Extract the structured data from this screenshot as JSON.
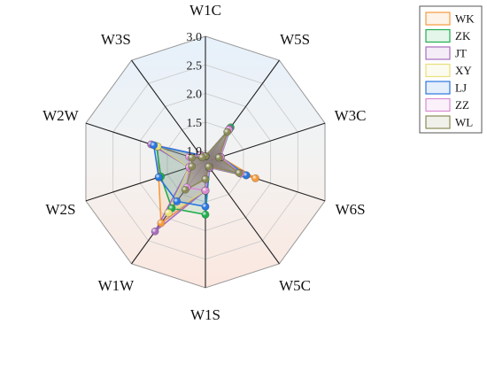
{
  "chart_data": {
    "type": "radar",
    "categories": [
      "W1C",
      "W5S",
      "W3C",
      "W6S",
      "W5C",
      "W1S",
      "W1W",
      "W2S",
      "W2W",
      "W3S"
    ],
    "r_ticks": [
      "1.0",
      "1.5",
      "2.0",
      "2.5",
      "3.0"
    ],
    "rlim": [
      0.8,
      3.0
    ],
    "grid": true,
    "legend_position": "top-right",
    "series": [
      {
        "name": "WK",
        "color": "#f59a3e",
        "values": [
          0.9,
          1.5,
          1.08,
          1.72,
          0.92,
          1.3,
          2.12,
          1.66,
          1.68,
          0.95
        ]
      },
      {
        "name": "ZK",
        "color": "#1fae4e",
        "values": [
          0.9,
          1.55,
          1.08,
          1.55,
          0.92,
          1.72,
          1.8,
          1.62,
          1.7,
          0.95
        ]
      },
      {
        "name": "JT",
        "color": "#a76dbd",
        "values": [
          0.9,
          1.52,
          1.08,
          1.45,
          0.92,
          1.3,
          2.3,
          1.1,
          1.8,
          0.95
        ]
      },
      {
        "name": "XY",
        "color": "#e8e07a",
        "values": [
          0.9,
          1.5,
          1.08,
          1.45,
          0.92,
          1.3,
          1.9,
          1.1,
          1.68,
          0.95
        ]
      },
      {
        "name": "LJ",
        "color": "#2a76e0",
        "values": [
          0.9,
          1.5,
          1.08,
          1.55,
          0.92,
          1.58,
          1.65,
          1.66,
          1.75,
          0.95
        ]
      },
      {
        "name": "ZZ",
        "color": "#d98bd2",
        "values": [
          0.9,
          1.5,
          1.08,
          1.45,
          0.92,
          1.3,
          1.35,
          1.1,
          1.1,
          0.95
        ]
      },
      {
        "name": "WL",
        "color": "#8a8a58",
        "values": [
          0.9,
          1.45,
          1.05,
          1.42,
          0.9,
          1.1,
          1.4,
          1.05,
          1.05,
          0.9
        ]
      }
    ]
  }
}
